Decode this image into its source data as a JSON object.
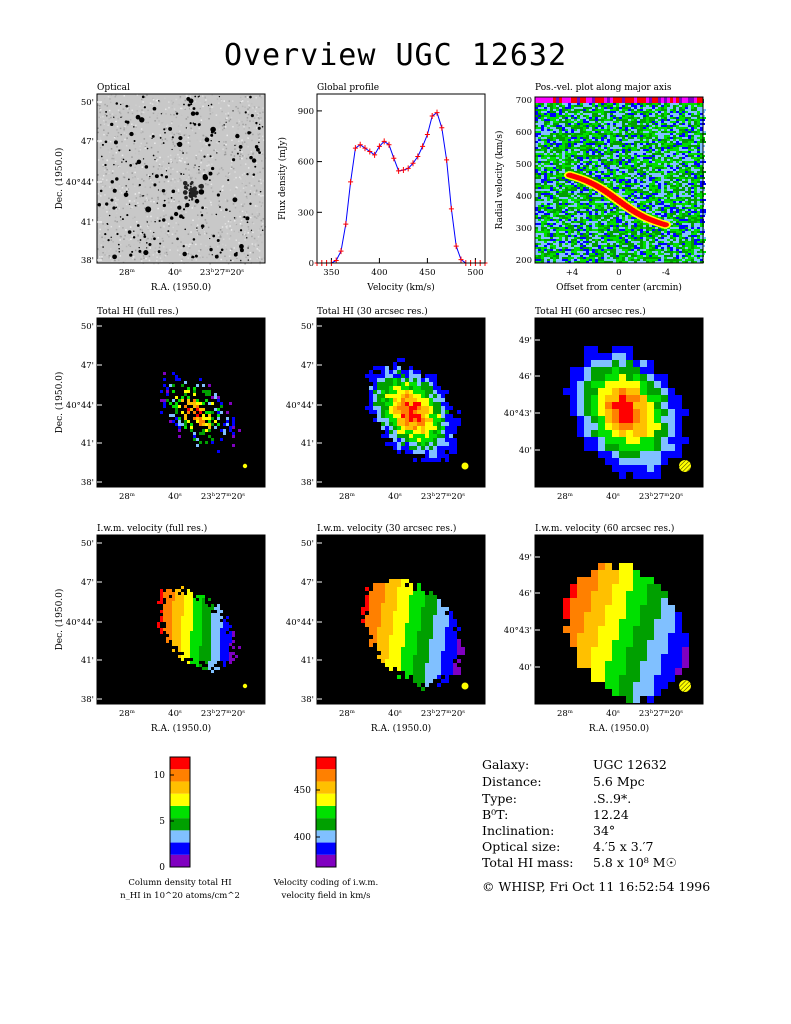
{
  "title": "Overview UGC 12632",
  "panels": {
    "optical": {
      "title": "Optical"
    },
    "global_profile": {
      "title": "Global profile"
    },
    "pv_plot": {
      "title": "Pos.-vel. plot along major axis"
    },
    "hi_full": {
      "title": "Total HI (full res.)"
    },
    "hi_30": {
      "title": "Total HI (30 arcsec res.)"
    },
    "hi_60": {
      "title": "Total HI (60 arcsec res.)"
    },
    "vel_full": {
      "title": "I.w.m. velocity (full res.)"
    },
    "vel_30": {
      "title": "I.w.m. velocity (30 arcsec res.)"
    },
    "vel_60": {
      "title": "I.w.m. velocity (60 arcsec res.)"
    }
  },
  "axes": {
    "dec_label": "Dec. (1950.0)",
    "ra_label": "R.A. (1950.0)",
    "dec_ticks_a": [
      "50'",
      "47'",
      "40°44'",
      "41'",
      "38'"
    ],
    "dec_ticks_b": [
      "49'",
      "46'",
      "40°43'",
      "40'"
    ],
    "ra_ticks": [
      "28ᵐ",
      "40ˢ",
      "23ʰ27ᵐ20ˢ"
    ]
  },
  "chart_data": [
    {
      "type": "line",
      "panel": "Global profile",
      "xlabel": "Velocity (km/s)",
      "ylabel": "Flux density (mJy)",
      "xlim": [
        335,
        510
      ],
      "ylim": [
        0,
        1000
      ],
      "xticks": [
        350,
        400,
        450,
        500
      ],
      "yticks": [
        0,
        300,
        600,
        900
      ],
      "series": [
        {
          "x": [
            335,
            340,
            345,
            350,
            355,
            360,
            365,
            370,
            375,
            380,
            385,
            390,
            395,
            400,
            405,
            410,
            415,
            420,
            425,
            430,
            435,
            440,
            445,
            450,
            455,
            460,
            465,
            470,
            475,
            480,
            485,
            490,
            495,
            500,
            505,
            510
          ],
          "values": [
            0,
            0,
            0,
            0,
            15,
            70,
            230,
            480,
            680,
            700,
            680,
            660,
            640,
            690,
            720,
            700,
            620,
            545,
            550,
            560,
            590,
            630,
            690,
            760,
            870,
            890,
            800,
            610,
            320,
            100,
            20,
            0,
            0,
            0,
            0,
            0
          ]
        }
      ]
    },
    {
      "type": "heatmap",
      "panel": "Pos.-vel. plot along major axis",
      "xlabel": "Offset from center (arcmin)",
      "ylabel": "Radial velocity (km/s)",
      "xticks": [
        "+4",
        "0",
        "-4"
      ],
      "yticks": [
        200,
        300,
        400,
        500,
        600,
        700
      ],
      "ylim": [
        190,
        710
      ]
    },
    {
      "type": "heatmap",
      "panel": "column density colour bar",
      "label_line1": "Column density total HI",
      "label_line2": "n_HI in 10^20 atoms/cm^2",
      "ticks": [
        0,
        5,
        10
      ],
      "range": [
        0,
        12
      ]
    },
    {
      "type": "heatmap",
      "panel": "velocity colour bar",
      "label_line1": "Velocity coding of i.w.m.",
      "label_line2": "velocity field in km/s",
      "ticks": [
        400,
        450
      ],
      "range": [
        370,
        485
      ]
    }
  ],
  "colors": [
    "#8000c0",
    "#0000ff",
    "#80c0ff",
    "#00a000",
    "#00e000",
    "#ffff00",
    "#ffc000",
    "#ff8000",
    "#ff0000"
  ],
  "info": {
    "galaxy_label": "Galaxy:",
    "galaxy": "UGC 12632",
    "distance_label": "Distance:",
    "distance": "5.6 Mpc",
    "type_label": "Type:",
    "type": ".S..9*.",
    "bt_label": "B⁰T:",
    "bt": "12.24",
    "incl_label": "Inclination:",
    "incl": "34°",
    "optsize_label": "Optical size:",
    "optsize": "4.′5 x 3.′7",
    "himass_label": "Total HI mass:",
    "himass": "5.8 x 10⁸ M☉"
  },
  "credit": "© WHISP, Fri Oct 11 16:52:54 1996"
}
